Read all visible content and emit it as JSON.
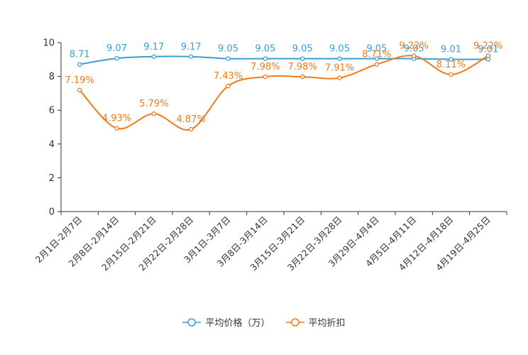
{
  "chart_data": {
    "type": "line",
    "categories": [
      "2月1日-2月7日",
      "2月8日-2月14日",
      "2月15日-2月21日",
      "2月22日-2月28日",
      "3月1日-3月7日",
      "3月8日-3月14日",
      "3月15日-3月21日",
      "3月22日-3月28日",
      "3月29日-4月4日",
      "4月5日-4月11日",
      "4月12日-4月18日",
      "4月19日-4月25日"
    ],
    "series": [
      {
        "name": "平均价格（万）",
        "color": "#3a9fd6",
        "values": [
          8.71,
          9.07,
          9.17,
          9.17,
          9.05,
          9.05,
          9.05,
          9.05,
          9.05,
          9.05,
          9.01,
          9.01
        ]
      },
      {
        "name": "平均折扣",
        "color": "#f07a1a",
        "values": [
          7.19,
          4.93,
          5.79,
          4.87,
          7.43,
          7.98,
          7.98,
          7.91,
          8.71,
          9.22,
          8.11,
          9.22
        ]
      }
    ],
    "data_labels": [
      [
        "8.71",
        "9.07",
        "9.17",
        "9.17",
        "9.05",
        "9.05",
        "9.05",
        "9.05",
        "9.05",
        "9.05",
        "9.01",
        "9.01"
      ],
      [
        "7.19%",
        "4.93%",
        "5.79%",
        "4.87%",
        "7.43%",
        "7.98%",
        "7.98%",
        "7.91%",
        "8.71%",
        "9.22%",
        "8.11%",
        "9.22%"
      ]
    ],
    "ylim": [
      0,
      10
    ],
    "yticks": [
      "0",
      "2",
      "4",
      "6",
      "8",
      "10"
    ],
    "ytick_values": [
      0,
      2,
      4,
      6,
      8,
      10
    ],
    "grid": false,
    "legend_position": "bottom-center",
    "axis_color": "#333333"
  }
}
